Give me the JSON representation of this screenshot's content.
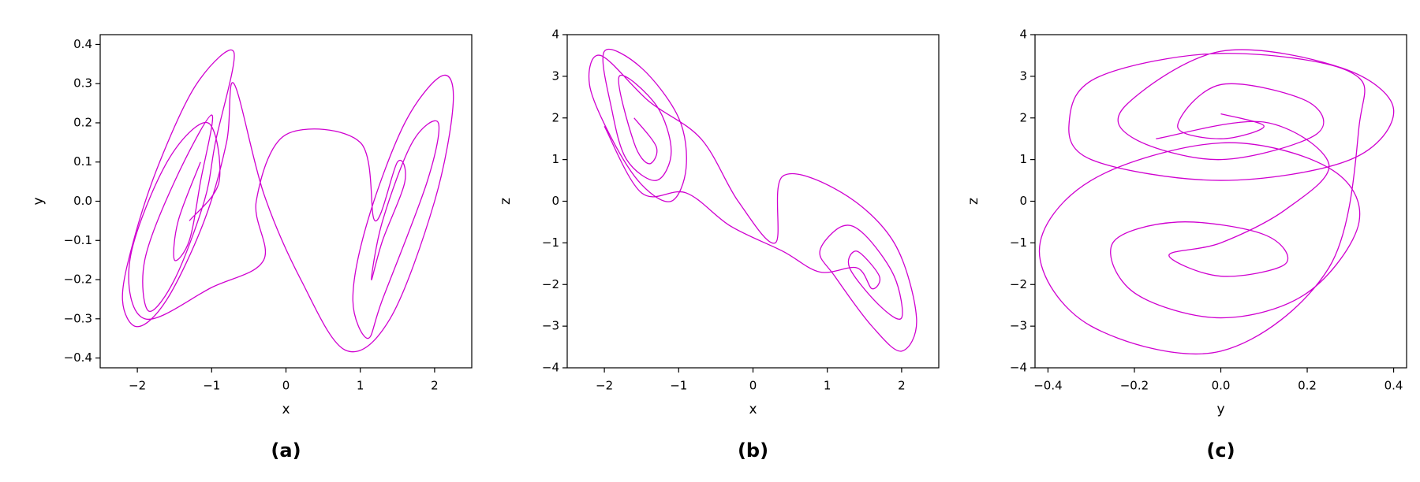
{
  "chart_data": [
    {
      "type": "line",
      "label": "(a)",
      "xlabel": "x",
      "ylabel": "y",
      "color": "#d000d0",
      "xlim": [
        -2.5,
        2.5
      ],
      "ylim": [
        -0.425,
        0.425
      ],
      "xticks": [
        {
          "value": -2,
          "label": "−2"
        },
        {
          "value": -1,
          "label": "−1"
        },
        0,
        1,
        2
      ],
      "yticks": [
        {
          "value": -0.4,
          "label": "−0.4"
        },
        {
          "value": -0.3,
          "label": "−0.3"
        },
        {
          "value": -0.2,
          "label": "−0.2"
        },
        {
          "value": -0.1,
          "label": "−0.1"
        },
        {
          "value": 0,
          "label": "0.0"
        },
        0.1,
        0.2,
        0.3,
        0.4
      ],
      "x": [
        -1.15,
        -1.45,
        -1.5,
        -1.3,
        -1.15,
        -1.0,
        -1.5,
        -1.9,
        -1.85,
        -1.5,
        -1.1,
        -0.95,
        -0.7,
        -1.2,
        -1.7,
        -2.05,
        -2.2,
        -2.0,
        -1.6,
        -1.1,
        -0.8,
        -0.7,
        -0.3,
        0.2,
        0.8,
        1.4,
        2.0,
        2.25,
        2.1,
        1.6,
        1.1,
        0.9,
        1.1,
        1.3,
        1.9,
        2.05,
        1.7,
        1.3,
        1.15,
        1.3,
        1.6,
        1.5,
        1.2,
        1.0,
        0.0,
        -0.4,
        -0.3,
        -1.0,
        -1.9,
        -2.1,
        -1.6,
        -1.05,
        -0.9,
        -1.3
      ],
      "values": [
        0.1,
        -0.05,
        -0.15,
        -0.1,
        0.05,
        0.22,
        0.05,
        -0.15,
        -0.28,
        -0.2,
        0.0,
        0.15,
        0.38,
        0.3,
        0.1,
        -0.1,
        -0.25,
        -0.32,
        -0.25,
        -0.05,
        0.15,
        0.3,
        0.02,
        -0.2,
        -0.38,
        -0.3,
        0.0,
        0.25,
        0.32,
        0.2,
        -0.05,
        -0.25,
        -0.35,
        -0.25,
        0.05,
        0.2,
        0.15,
        -0.05,
        -0.2,
        -0.1,
        0.05,
        0.1,
        -0.05,
        0.15,
        0.17,
        0.0,
        -0.15,
        -0.22,
        -0.3,
        -0.15,
        0.1,
        0.2,
        0.05,
        -0.05
      ]
    },
    {
      "type": "line",
      "label": "(b)",
      "xlabel": "x",
      "ylabel": "z",
      "color": "#d000d0",
      "xlim": [
        -2.5,
        2.5
      ],
      "ylim": [
        -4,
        4
      ],
      "xticks": [
        {
          "value": -2,
          "label": "−2"
        },
        {
          "value": -1,
          "label": "−1"
        },
        0,
        1,
        2
      ],
      "yticks": [
        {
          "value": -4,
          "label": "−4"
        },
        {
          "value": -3,
          "label": "−3"
        },
        {
          "value": -2,
          "label": "−2"
        },
        {
          "value": -1,
          "label": "−1"
        },
        0,
        1,
        2,
        3,
        4
      ],
      "x": [
        -1.6,
        -1.3,
        -1.4,
        -1.6,
        -1.8,
        -1.3,
        -1.1,
        -1.3,
        -1.7,
        -1.9,
        -2.0,
        -1.5,
        -1.0,
        -0.9,
        -1.1,
        -1.5,
        -1.9,
        -2.2,
        -2.05,
        -1.4,
        -0.7,
        -0.2,
        0.3,
        0.4,
        1.2,
        1.9,
        2.2,
        2.0,
        1.6,
        1.1,
        0.9,
        1.2,
        1.5,
        1.9,
        2.0,
        1.7,
        1.3,
        1.4,
        1.7,
        1.6,
        1.4,
        0.9,
        0.4,
        -0.3,
        -0.9,
        -1.5,
        -2.0
      ],
      "values": [
        2.0,
        1.3,
        0.9,
        1.4,
        3.0,
        2.3,
        1.2,
        0.5,
        1.0,
        2.2,
        3.6,
        3.2,
        2.0,
        0.8,
        0.0,
        0.4,
        1.5,
        2.8,
        3.5,
        2.4,
        1.5,
        0.0,
        -1.0,
        0.6,
        0.2,
        -1.0,
        -2.8,
        -3.6,
        -3.0,
        -1.8,
        -1.2,
        -0.6,
        -0.8,
        -1.8,
        -2.8,
        -2.5,
        -1.6,
        -1.2,
        -1.8,
        -2.1,
        -1.6,
        -1.7,
        -1.2,
        -0.6,
        0.2,
        0.2,
        1.8
      ]
    },
    {
      "type": "line",
      "label": "(c)",
      "xlabel": "y",
      "ylabel": "z",
      "color": "#d000d0",
      "xlim": [
        -0.43,
        0.43
      ],
      "ylim": [
        -4,
        4
      ],
      "xticks": [
        {
          "value": -0.4,
          "label": "−0.4"
        },
        {
          "value": -0.2,
          "label": "−0.2"
        },
        {
          "value": 0,
          "label": "0.0"
        },
        0.2,
        0.4
      ],
      "yticks": [
        {
          "value": -4,
          "label": "−4"
        },
        {
          "value": -3,
          "label": "−3"
        },
        {
          "value": -2,
          "label": "−2"
        },
        {
          "value": -1,
          "label": "−1"
        },
        0,
        1,
        2,
        3,
        4
      ],
      "x": [
        0.0,
        0.1,
        0.0,
        -0.1,
        0.0,
        0.2,
        0.22,
        0.0,
        -0.2,
        -0.22,
        0.0,
        0.28,
        0.4,
        0.3,
        0.0,
        -0.3,
        -0.35,
        -0.28,
        0.0,
        0.3,
        0.32,
        0.25,
        0.0,
        -0.3,
        -0.42,
        -0.3,
        0.0,
        0.25,
        0.32,
        0.2,
        0.0,
        -0.2,
        -0.25,
        -0.1,
        0.1,
        0.15,
        0.0,
        -0.12,
        0.0,
        0.15,
        0.25,
        0.1,
        -0.15
      ],
      "values": [
        2.1,
        1.8,
        1.5,
        1.8,
        2.8,
        2.4,
        1.6,
        1.0,
        1.5,
        2.3,
        3.6,
        3.2,
        2.2,
        1.0,
        0.5,
        1.0,
        2.0,
        3.0,
        3.55,
        3.1,
        1.8,
        -1.6,
        -3.6,
        -3.0,
        -1.2,
        0.5,
        1.4,
        0.8,
        -0.5,
        -2.2,
        -2.8,
        -2.2,
        -1.0,
        -0.5,
        -0.8,
        -1.5,
        -1.8,
        -1.3,
        -1.0,
        -0.2,
        0.9,
        1.9,
        1.5
      ]
    }
  ]
}
